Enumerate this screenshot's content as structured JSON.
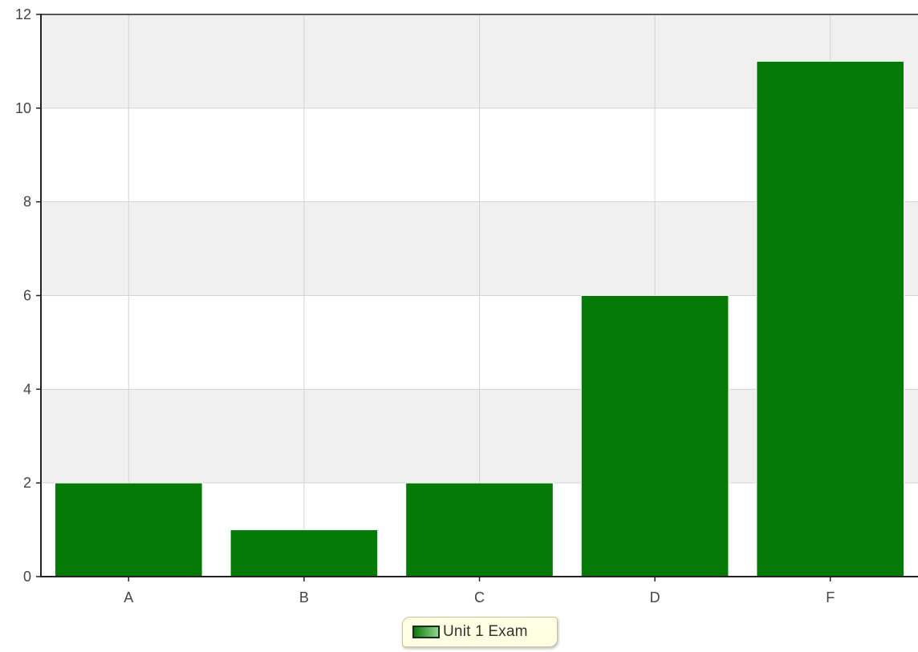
{
  "chart_data": {
    "type": "bar",
    "categories": [
      "A",
      "B",
      "C",
      "D",
      "F"
    ],
    "series": [
      {
        "name": "Unit 1 Exam",
        "values": [
          2,
          1,
          2,
          6,
          11
        ]
      }
    ],
    "yticks": [
      "0",
      "2",
      "4",
      "6",
      "8",
      "10",
      "12"
    ],
    "ylim": [
      0,
      12
    ],
    "grid": true,
    "legend_position": "bottom-center",
    "title": "",
    "xlabel": "",
    "ylabel": ""
  },
  "colors": {
    "bar": "#067a06",
    "band": "#f0f0f0",
    "grid": "#d4d4d4",
    "axis": "#222222",
    "text": "#444444"
  }
}
